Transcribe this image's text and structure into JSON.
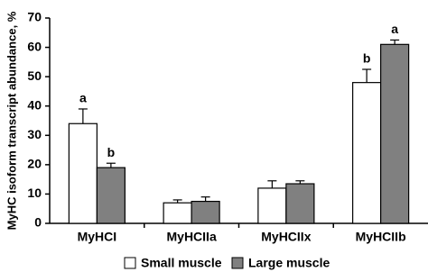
{
  "chart_data": {
    "type": "bar",
    "y_label": "MyHC isoform transcript abundance, %",
    "categories": [
      "MyHCI",
      "MyHCIIa",
      "MyHCIIx",
      "MyHCIIb"
    ],
    "series": [
      {
        "name": "Small muscle",
        "color": "#ffffff",
        "values": [
          34,
          7,
          12,
          48
        ],
        "errors": [
          5,
          1,
          2.5,
          4.5
        ],
        "annotations": [
          "a",
          null,
          null,
          "b"
        ]
      },
      {
        "name": "Large muscle",
        "color": "#808080",
        "values": [
          19,
          7.5,
          13.5,
          61
        ],
        "errors": [
          1.5,
          1.5,
          1,
          1.5
        ],
        "annotations": [
          "b",
          null,
          null,
          "a"
        ]
      }
    ],
    "ylim": [
      0,
      70
    ],
    "yticks": [
      0,
      10,
      20,
      30,
      40,
      50,
      60,
      70
    ],
    "grid": false,
    "legend": "bottom"
  }
}
